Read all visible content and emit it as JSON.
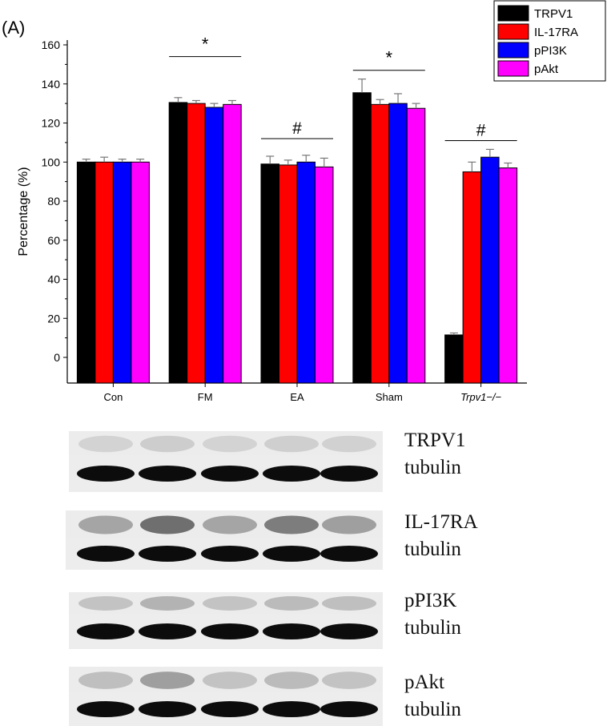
{
  "panel_label": "(A)",
  "chart_data": {
    "type": "bar",
    "title": "",
    "xlabel": "",
    "ylabel": "Percentage (%)",
    "ylim": [
      0,
      160
    ],
    "yticks": [
      0,
      20,
      40,
      60,
      80,
      100,
      120,
      140,
      160
    ],
    "categories": [
      "Con",
      "FM",
      "EA",
      "Sham",
      "Trpv1−/−"
    ],
    "italic_categories": [
      "Trpv1−/−"
    ],
    "series": [
      {
        "name": "TRPV1",
        "color": "#000000",
        "values": [
          100,
          130.5,
          99,
          135.5,
          11.5
        ],
        "errors": [
          1.5,
          2.5,
          4,
          7,
          1
        ]
      },
      {
        "name": "IL-17RA",
        "color": "#ff0000",
        "values": [
          100,
          130,
          98.5,
          129.5,
          95
        ],
        "errors": [
          2.5,
          1.5,
          2.5,
          2.5,
          5
        ]
      },
      {
        "name": "pPI3K",
        "color": "#0000ff",
        "values": [
          100,
          128,
          100,
          130,
          102.5
        ],
        "errors": [
          1.5,
          2,
          3.5,
          5,
          4
        ]
      },
      {
        "name": "pAkt",
        "color": "#ff00ff",
        "values": [
          100,
          129.5,
          97.5,
          127.5,
          97
        ],
        "errors": [
          1.5,
          2,
          4.5,
          2.5,
          2.5
        ]
      }
    ],
    "significance": [
      {
        "category": "FM",
        "mark": "*",
        "level": 154
      },
      {
        "category": "EA",
        "mark": "#",
        "level": 112
      },
      {
        "category": "Sham",
        "mark": "*",
        "level": 147
      },
      {
        "category": "Trpv1−/−",
        "mark": "#",
        "level": 111
      }
    ],
    "legend_position": "top-right",
    "grid": false
  },
  "blots": [
    {
      "top": "TRPV1",
      "bottom": "tubulin",
      "top_intensity": [
        0.12,
        0.15,
        0.12,
        0.14,
        0.13
      ]
    },
    {
      "top": "IL-17RA",
      "bottom": "tubulin",
      "top_intensity": [
        0.35,
        0.62,
        0.35,
        0.55,
        0.38
      ]
    },
    {
      "top": "pPI3K",
      "bottom": "tubulin",
      "top_intensity": [
        0.2,
        0.28,
        0.2,
        0.24,
        0.22
      ]
    },
    {
      "top": "pAkt",
      "bottom": "tubulin",
      "top_intensity": [
        0.22,
        0.38,
        0.2,
        0.24,
        0.2
      ]
    }
  ]
}
